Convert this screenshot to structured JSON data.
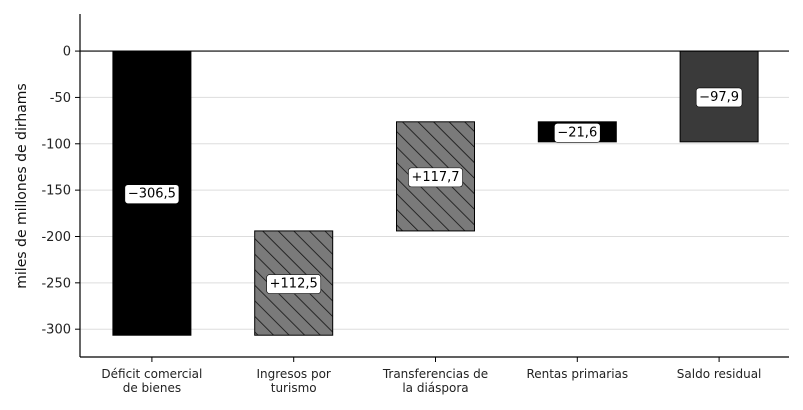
{
  "chart_data": {
    "type": "bar",
    "subtype": "waterfall",
    "title": "",
    "xlabel": "",
    "ylabel": "miles de millones de dirhams",
    "ylim": [
      -330,
      40
    ],
    "yticks": [
      0,
      -50,
      -100,
      -150,
      -200,
      -250,
      -300
    ],
    "ytick_labels": [
      "0",
      "-50",
      "-100",
      "-150",
      "-200",
      "-250",
      "-300"
    ],
    "grid": "horizontal",
    "categories": [
      [
        "Déficit comercial",
        "de bienes"
      ],
      [
        "Ingresos por",
        "turismo"
      ],
      [
        "Transferencias de",
        "la diáspora"
      ],
      [
        "Rentas primarias"
      ],
      [
        "Saldo residual"
      ]
    ],
    "bars": [
      {
        "start": 0,
        "end": -306.5,
        "label": "−306,5",
        "fill": "#000000",
        "pattern": "none"
      },
      {
        "start": -306.5,
        "end": -194.0,
        "label": "+112,5",
        "fill": "#7a7a7a",
        "pattern": "hatch"
      },
      {
        "start": -194.0,
        "end": -76.3,
        "label": "+117,7",
        "fill": "#7a7a7a",
        "pattern": "hatch"
      },
      {
        "start": -76.3,
        "end": -97.9,
        "label": "−21,6",
        "fill": "#000000",
        "pattern": "none"
      },
      {
        "start": 0,
        "end": -97.9,
        "label": "−97,9",
        "fill": "#3a3a3a",
        "pattern": "none"
      }
    ]
  }
}
